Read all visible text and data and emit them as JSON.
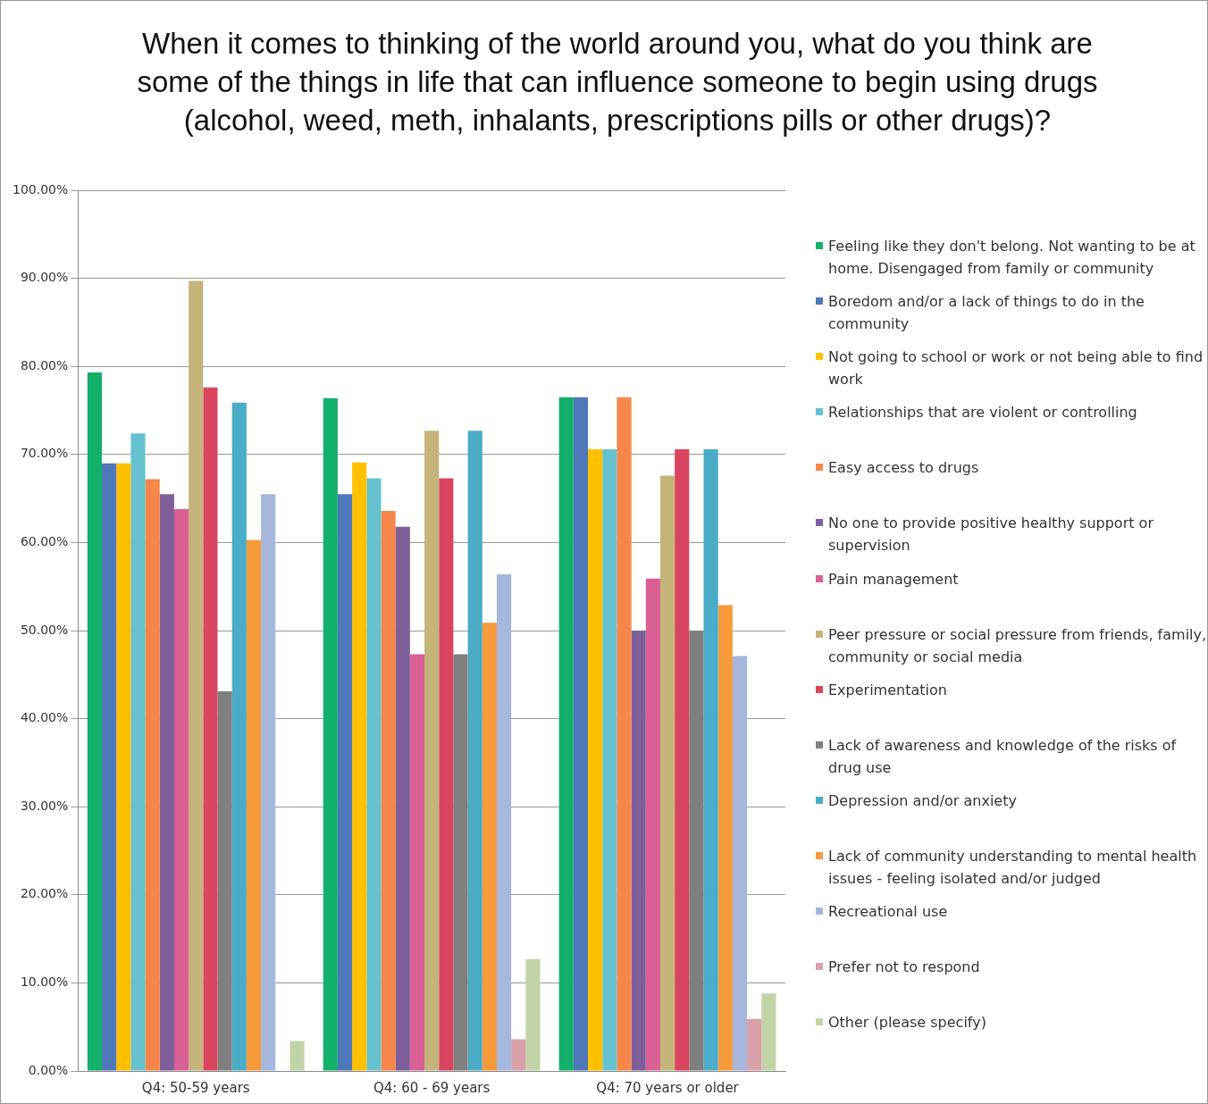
{
  "chart_data": {
    "type": "bar",
    "title": "When it comes to thinking of the world around you, what do you think are some of the things in life that can influence someone to begin using drugs (alcohol, weed, meth, inhalants, prescriptions pills or other drugs)?",
    "categories": [
      "Q4: 50-59 years",
      "Q4: 60 - 69 years",
      "Q4: 70 years or older"
    ],
    "series": [
      {
        "name": "Feeling like they don't belong.  Not wanting to be at home. Disengaged from family or community",
        "color": "#13b06b",
        "values": [
          79.3,
          76.4,
          76.5
        ]
      },
      {
        "name": "Boredom and/or a lack of things to do in the community",
        "color": "#4f78b8",
        "values": [
          69.0,
          65.5,
          76.5
        ]
      },
      {
        "name": "Not going to school or work or not being able to find work",
        "color": "#ffc000",
        "values": [
          69.0,
          69.1,
          70.6
        ]
      },
      {
        "name": "Relationships that are violent or controlling",
        "color": "#66c2d0",
        "values": [
          72.4,
          67.3,
          70.6
        ]
      },
      {
        "name": "Easy access to drugs",
        "color": "#f7864a",
        "values": [
          67.2,
          63.6,
          76.5
        ]
      },
      {
        "name": "No one to provide positive healthy support or supervision",
        "color": "#7f5f9a",
        "values": [
          65.5,
          61.8,
          50.0
        ]
      },
      {
        "name": "Pain management",
        "color": "#d95f95",
        "values": [
          63.8,
          47.3,
          55.9
        ]
      },
      {
        "name": "Peer pressure or social pressure from friends, family, community or social media",
        "color": "#c4b47a",
        "values": [
          89.7,
          72.7,
          67.6
        ]
      },
      {
        "name": "Experimentation",
        "color": "#d9455f",
        "values": [
          77.6,
          67.3,
          70.6
        ]
      },
      {
        "name": "Lack of awareness and knowledge of the risks of drug use",
        "color": "#7f7f7f",
        "values": [
          43.1,
          47.3,
          50.0
        ]
      },
      {
        "name": "Depression and/or anxiety",
        "color": "#4aacc6",
        "values": [
          75.9,
          72.7,
          70.6
        ]
      },
      {
        "name": "Lack of community understanding to mental health issues - feeling isolated and/or judged",
        "color": "#f79a3c",
        "values": [
          60.3,
          50.9,
          52.9
        ]
      },
      {
        "name": "Recreational use",
        "color": "#a6b6dc",
        "values": [
          65.5,
          56.4,
          47.1
        ]
      },
      {
        "name": "Prefer not to respond",
        "color": "#d9a0aa",
        "values": [
          0,
          3.6,
          5.9
        ]
      },
      {
        "name": "Other (please specify)",
        "color": "#c3d3a8",
        "values": [
          3.4,
          12.7,
          8.8
        ]
      }
    ],
    "ylim": [
      0,
      100
    ],
    "yticks": [
      {
        "value": 0,
        "label": "0.00%"
      },
      {
        "value": 10,
        "label": "10.00%"
      },
      {
        "value": 20,
        "label": "20.00%"
      },
      {
        "value": 30,
        "label": "30.00%"
      },
      {
        "value": 40,
        "label": "40.00%"
      },
      {
        "value": 50,
        "label": "50.00%"
      },
      {
        "value": 60,
        "label": "60.00%"
      },
      {
        "value": 70,
        "label": "70.00%"
      },
      {
        "value": 80,
        "label": "80.00%"
      },
      {
        "value": 90,
        "label": "90.00%"
      },
      {
        "value": 100,
        "label": "100.00%"
      }
    ],
    "grid": "y",
    "legend": "right"
  }
}
